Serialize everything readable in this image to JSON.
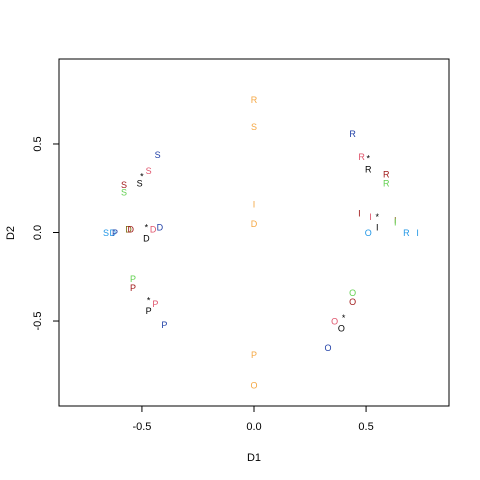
{
  "chart_data": {
    "type": "scatter",
    "xlabel": "D1",
    "ylabel": "D2",
    "xlim": [
      -0.87,
      0.87
    ],
    "ylim": [
      -0.98,
      0.98
    ],
    "x_ticks": [
      -0.5,
      0.0,
      0.5
    ],
    "y_ticks": [
      -0.5,
      0.0,
      0.5
    ],
    "x_tick_labels": [
      "-0.5",
      "0.0",
      "0.5"
    ],
    "y_tick_labels": [
      "-0.5",
      "0.0",
      "0.5"
    ],
    "grid": false,
    "legend": "none",
    "colors": {
      "black": "#000000",
      "red": "#df536b",
      "green": "#61d04f",
      "blue": "#2297e6",
      "navy": "#1f3fa6",
      "orange": "#f5a742",
      "darkred": "#a01818",
      "olive": "#7a6a10"
    },
    "points": [
      {
        "label": "R",
        "x": 0.0,
        "y": 0.75,
        "color": "orange"
      },
      {
        "label": "S",
        "x": 0.0,
        "y": 0.6,
        "color": "orange"
      },
      {
        "label": "I",
        "x": 0.0,
        "y": 0.16,
        "color": "orange"
      },
      {
        "label": "D",
        "x": 0.0,
        "y": 0.05,
        "color": "orange"
      },
      {
        "label": "P",
        "x": 0.0,
        "y": -0.69,
        "color": "orange"
      },
      {
        "label": "O",
        "x": 0.0,
        "y": -0.86,
        "color": "orange"
      },
      {
        "label": "S",
        "x": -0.43,
        "y": 0.44,
        "color": "navy"
      },
      {
        "label": "S",
        "x": -0.47,
        "y": 0.35,
        "color": "red"
      },
      {
        "label": "*",
        "x": -0.5,
        "y": 0.32,
        "color": "black"
      },
      {
        "label": "S",
        "x": -0.51,
        "y": 0.28,
        "color": "black"
      },
      {
        "label": "S",
        "x": -0.58,
        "y": 0.27,
        "color": "darkred"
      },
      {
        "label": "S",
        "x": -0.58,
        "y": 0.23,
        "color": "green"
      },
      {
        "label": "S",
        "x": -0.66,
        "y": 0.0,
        "color": "blue"
      },
      {
        "label": "D",
        "x": -0.63,
        "y": 0.0,
        "color": "blue"
      },
      {
        "label": "P",
        "x": -0.62,
        "y": 0.0,
        "color": "navy"
      },
      {
        "label": "D",
        "x": -0.56,
        "y": 0.02,
        "color": "olive"
      },
      {
        "label": "D",
        "x": -0.55,
        "y": 0.02,
        "color": "darkred"
      },
      {
        "label": "*",
        "x": -0.48,
        "y": 0.03,
        "color": "black"
      },
      {
        "label": "D",
        "x": -0.45,
        "y": 0.02,
        "color": "red"
      },
      {
        "label": "D",
        "x": -0.42,
        "y": 0.03,
        "color": "navy"
      },
      {
        "label": "D",
        "x": -0.48,
        "y": -0.03,
        "color": "black"
      },
      {
        "label": "P",
        "x": -0.54,
        "y": -0.26,
        "color": "green"
      },
      {
        "label": "P",
        "x": -0.54,
        "y": -0.31,
        "color": "darkred"
      },
      {
        "label": "*",
        "x": -0.47,
        "y": -0.38,
        "color": "black"
      },
      {
        "label": "P",
        "x": -0.44,
        "y": -0.4,
        "color": "red"
      },
      {
        "label": "P",
        "x": -0.47,
        "y": -0.44,
        "color": "black"
      },
      {
        "label": "P",
        "x": -0.4,
        "y": -0.52,
        "color": "navy"
      },
      {
        "label": "R",
        "x": 0.44,
        "y": 0.56,
        "color": "navy"
      },
      {
        "label": "R",
        "x": 0.48,
        "y": 0.43,
        "color": "red"
      },
      {
        "label": "*",
        "x": 0.51,
        "y": 0.42,
        "color": "black"
      },
      {
        "label": "R",
        "x": 0.51,
        "y": 0.36,
        "color": "black"
      },
      {
        "label": "R",
        "x": 0.59,
        "y": 0.33,
        "color": "darkred"
      },
      {
        "label": "R",
        "x": 0.59,
        "y": 0.28,
        "color": "green"
      },
      {
        "label": "I",
        "x": 0.47,
        "y": 0.11,
        "color": "darkred"
      },
      {
        "label": "I",
        "x": 0.52,
        "y": 0.09,
        "color": "red"
      },
      {
        "label": "*",
        "x": 0.55,
        "y": 0.09,
        "color": "black"
      },
      {
        "label": "I",
        "x": 0.55,
        "y": 0.03,
        "color": "black"
      },
      {
        "label": "I",
        "x": 0.63,
        "y": 0.07,
        "color": "olive"
      },
      {
        "label": "I",
        "x": 0.63,
        "y": 0.06,
        "color": "green"
      },
      {
        "label": "O",
        "x": 0.51,
        "y": 0.0,
        "color": "blue"
      },
      {
        "label": "R",
        "x": 0.68,
        "y": 0.0,
        "color": "blue"
      },
      {
        "label": "I",
        "x": 0.73,
        "y": 0.0,
        "color": "blue"
      },
      {
        "label": "O",
        "x": 0.44,
        "y": -0.34,
        "color": "green"
      },
      {
        "label": "O",
        "x": 0.44,
        "y": -0.39,
        "color": "darkred"
      },
      {
        "label": "*",
        "x": 0.4,
        "y": -0.48,
        "color": "black"
      },
      {
        "label": "O",
        "x": 0.36,
        "y": -0.5,
        "color": "red"
      },
      {
        "label": "O",
        "x": 0.39,
        "y": -0.54,
        "color": "black"
      },
      {
        "label": "O",
        "x": 0.33,
        "y": -0.65,
        "color": "navy"
      }
    ]
  }
}
